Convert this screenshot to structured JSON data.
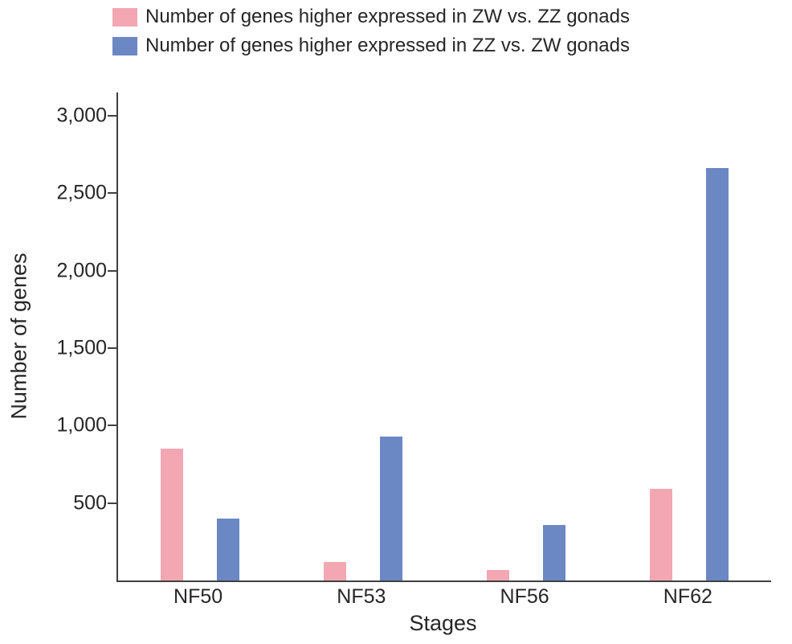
{
  "chart_data": {
    "type": "bar",
    "categories": [
      "NF50",
      "NF53",
      "NF56",
      "NF62"
    ],
    "series": [
      {
        "name": "Number of genes higher expressed in ZW vs. ZZ gonads",
        "color": "#f2a7b2",
        "values": [
          850,
          120,
          70,
          590
        ]
      },
      {
        "name": "Number of genes higher expressed in ZZ vs. ZW gonads",
        "color": "#6b87c4",
        "values": [
          400,
          930,
          360,
          2660
        ]
      }
    ],
    "title": "",
    "xlabel": "Stages",
    "ylabel": "Number of genes",
    "ylim": [
      0,
      3150
    ],
    "yticks": [
      500,
      1000,
      1500,
      2000,
      2500,
      3000
    ],
    "grid": false,
    "legend_position": "top",
    "axis_color": "#404040",
    "text_color": "#262626"
  }
}
